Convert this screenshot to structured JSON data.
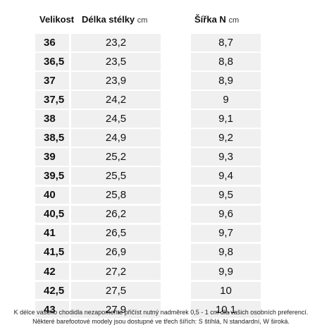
{
  "headers": {
    "size": "Velikost",
    "length": "Délka stélky",
    "length_unit": "cm",
    "width": "Šířka N",
    "width_unit": "cm"
  },
  "rows": [
    {
      "size": "36",
      "length": "23,2",
      "width": "8,7"
    },
    {
      "size": "36,5",
      "length": "23,5",
      "width": "8,8"
    },
    {
      "size": "37",
      "length": "23,9",
      "width": "8,9"
    },
    {
      "size": "37,5",
      "length": "24,2",
      "width": "9"
    },
    {
      "size": "38",
      "length": "24,5",
      "width": "9,1"
    },
    {
      "size": "38,5",
      "length": "24,9",
      "width": "9,2"
    },
    {
      "size": "39",
      "length": "25,2",
      "width": "9,3"
    },
    {
      "size": "39,5",
      "length": "25,5",
      "width": "9,4"
    },
    {
      "size": "40",
      "length": "25,8",
      "width": "9,5"
    },
    {
      "size": "40,5",
      "length": "26,2",
      "width": "9,6"
    },
    {
      "size": "41",
      "length": "26,5",
      "width": "9,7"
    },
    {
      "size": "41,5",
      "length": "26,9",
      "width": "9,8"
    },
    {
      "size": "42",
      "length": "27,2",
      "width": "9,9"
    },
    {
      "size": "42,5",
      "length": "27,5",
      "width": "10"
    },
    {
      "size": "43",
      "length": "27,9",
      "width": "10,1"
    }
  ],
  "footnotes": [
    "K délce vašeho chodidla nezapomeňte přičíst nutný nadměrek 0,5 - 1 cm dle vašich osobních preferencí.",
    "Některé barefootové modely jsou dostupné ve třech šířích: S štíhlá, N standardní, W široká."
  ]
}
